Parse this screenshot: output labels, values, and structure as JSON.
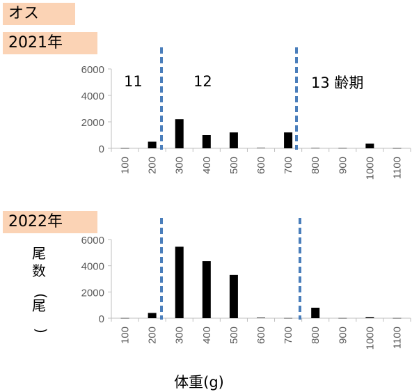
{
  "header": {
    "sex_label": "オス"
  },
  "chart_data": [
    {
      "type": "bar",
      "year_label": "2021年",
      "categories": [
        "100",
        "200",
        "300",
        "400",
        "500",
        "600",
        "700",
        "800",
        "900",
        "1000",
        "1100"
      ],
      "values": [
        10,
        500,
        2200,
        1000,
        1200,
        30,
        1200,
        20,
        15,
        350,
        10
      ],
      "ylim": [
        0,
        6000
      ],
      "yticks": [
        "6000",
        "4000",
        "2000",
        "0"
      ],
      "stage_lines_after_category": [
        "200",
        "700"
      ],
      "stage_labels": [
        "11",
        "12",
        "13 齢期"
      ]
    },
    {
      "type": "bar",
      "year_label": "2022年",
      "categories": [
        "100",
        "200",
        "300",
        "400",
        "500",
        "600",
        "700",
        "800",
        "900",
        "1000",
        "1100"
      ],
      "values": [
        10,
        400,
        5450,
        4350,
        3300,
        40,
        10,
        800,
        10,
        80,
        10
      ],
      "ylim": [
        0,
        6000
      ],
      "yticks": [
        "6000",
        "4000",
        "2000",
        "0"
      ],
      "stage_lines_after_category": [
        "200",
        "700"
      ],
      "ylabel": "尾数(尾)",
      "xlabel": "体重(g)"
    }
  ],
  "colors": {
    "bar": "#000000",
    "stage_line": "#4a7ebb",
    "axis": "#bfbfbf",
    "label_box": "#fbd3b5"
  }
}
